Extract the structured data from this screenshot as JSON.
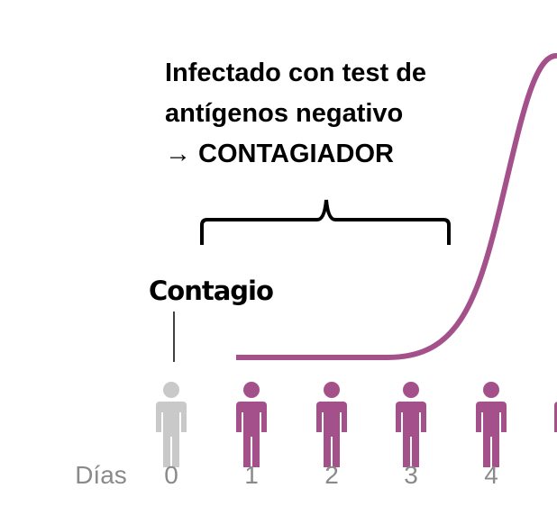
{
  "annotation": {
    "lines": [
      "Infectado con test de",
      "antígenos negativo",
      "→ CONTAGIADOR"
    ]
  },
  "event_label": "Contagio",
  "axis_label": "Días",
  "days": [
    "0",
    "1",
    "2",
    "3",
    "4"
  ]
}
